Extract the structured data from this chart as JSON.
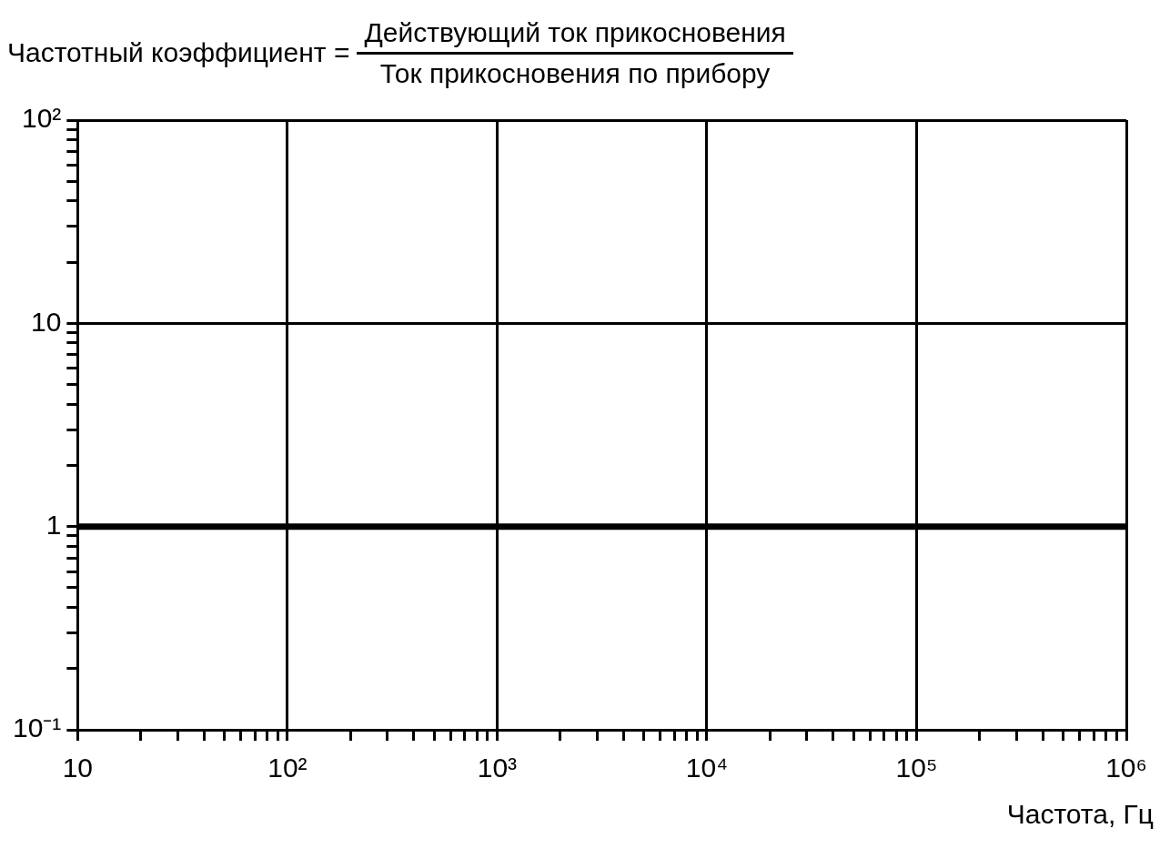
{
  "chart_data": {
    "type": "line",
    "title": "Частотный коэффициент =",
    "annotations": [
      "Действующий ток прикосновения",
      "Ток прикосновения по прибору"
    ],
    "xlabel": "Частота, Гц",
    "log": "xy",
    "grid": true,
    "x": [
      10,
      1000000
    ],
    "series": [
      {
        "color": "#000000",
        "values": [
          1,
          1
        ]
      }
    ],
    "xlim": [
      10,
      1000000
    ],
    "ylim": [
      0.1,
      100
    ],
    "xticks": [
      {
        "value": 10,
        "label": "10"
      },
      {
        "value": 20,
        "label": null
      },
      {
        "value": 30,
        "label": null
      },
      {
        "value": 40,
        "label": null
      },
      {
        "value": 50,
        "label": null
      },
      {
        "value": 60,
        "label": null
      },
      {
        "value": 70,
        "label": null
      },
      {
        "value": 80,
        "label": null
      },
      {
        "value": 90,
        "label": null
      },
      {
        "value": 100,
        "label": "10²"
      },
      {
        "value": 200,
        "label": null
      },
      {
        "value": 300,
        "label": null
      },
      {
        "value": 400,
        "label": null
      },
      {
        "value": 500,
        "label": null
      },
      {
        "value": 600,
        "label": null
      },
      {
        "value": 700,
        "label": null
      },
      {
        "value": 800,
        "label": null
      },
      {
        "value": 900,
        "label": null
      },
      {
        "value": 1000,
        "label": "10³"
      },
      {
        "value": 2000,
        "label": null
      },
      {
        "value": 3000,
        "label": null
      },
      {
        "value": 4000,
        "label": null
      },
      {
        "value": 5000,
        "label": null
      },
      {
        "value": 6000,
        "label": null
      },
      {
        "value": 7000,
        "label": null
      },
      {
        "value": 8000,
        "label": null
      },
      {
        "value": 9000,
        "label": null
      },
      {
        "value": 10000,
        "label": "10⁴"
      },
      {
        "value": 20000,
        "label": null
      },
      {
        "value": 30000,
        "label": null
      },
      {
        "value": 40000,
        "label": null
      },
      {
        "value": 50000,
        "label": null
      },
      {
        "value": 60000,
        "label": null
      },
      {
        "value": 70000,
        "label": null
      },
      {
        "value": 80000,
        "label": null
      },
      {
        "value": 90000,
        "label": null
      },
      {
        "value": 100000,
        "label": "10⁵"
      },
      {
        "value": 200000,
        "label": null
      },
      {
        "value": 300000,
        "label": null
      },
      {
        "value": 400000,
        "label": null
      },
      {
        "value": 500000,
        "label": null
      },
      {
        "value": 600000,
        "label": null
      },
      {
        "value": 700000,
        "label": null
      },
      {
        "value": 800000,
        "label": null
      },
      {
        "value": 900000,
        "label": null
      },
      {
        "value": 1000000,
        "label": "10⁶"
      }
    ],
    "yticks": [
      {
        "value": 0.1,
        "label": "10⁻¹"
      },
      {
        "value": 0.2,
        "label": null
      },
      {
        "value": 0.3,
        "label": null
      },
      {
        "value": 0.4,
        "label": null
      },
      {
        "value": 0.5,
        "label": null
      },
      {
        "value": 0.6,
        "label": null
      },
      {
        "value": 0.7,
        "label": null
      },
      {
        "value": 0.8,
        "label": null
      },
      {
        "value": 0.9,
        "label": null
      },
      {
        "value": 1,
        "label": "1"
      },
      {
        "value": 2,
        "label": null
      },
      {
        "value": 3,
        "label": null
      },
      {
        "value": 4,
        "label": null
      },
      {
        "value": 5,
        "label": null
      },
      {
        "value": 6,
        "label": null
      },
      {
        "value": 7,
        "label": null
      },
      {
        "value": 8,
        "label": null
      },
      {
        "value": 9,
        "label": null
      },
      {
        "value": 10,
        "label": "10"
      },
      {
        "value": 20,
        "label": null
      },
      {
        "value": 30,
        "label": null
      },
      {
        "value": 40,
        "label": null
      },
      {
        "value": 50,
        "label": null
      },
      {
        "value": 60,
        "label": null
      },
      {
        "value": 70,
        "label": null
      },
      {
        "value": 80,
        "label": null
      },
      {
        "value": 90,
        "label": null
      },
      {
        "value": 100,
        "label": "10²"
      }
    ]
  }
}
